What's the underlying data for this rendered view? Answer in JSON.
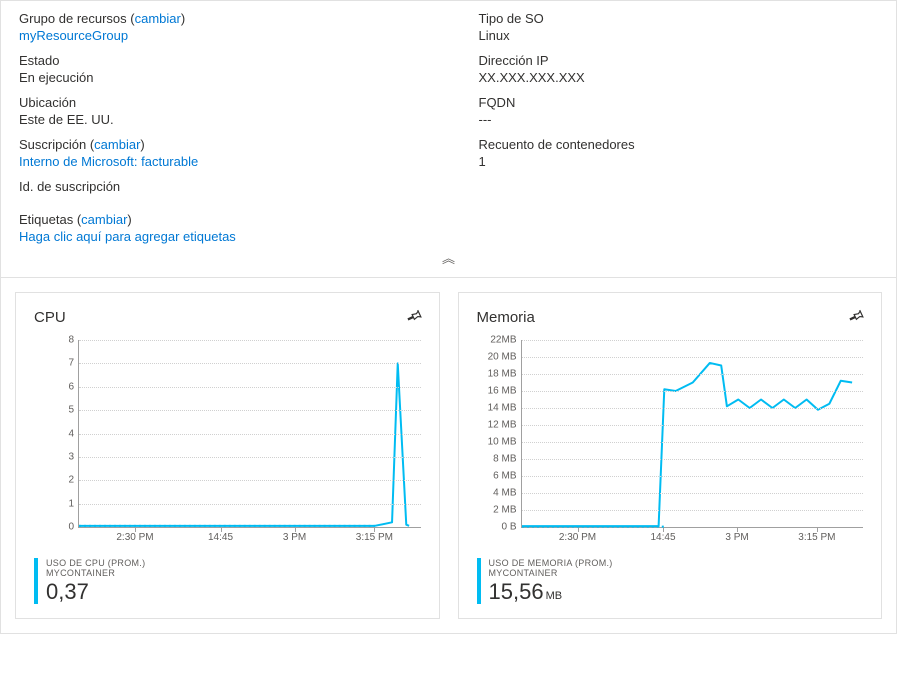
{
  "properties": {
    "left": [
      {
        "label": "Grupo de recursos",
        "change": "cambiar",
        "value": "myResourceGroup",
        "value_is_link": true
      },
      {
        "label": "Estado",
        "value": "En ejecución"
      },
      {
        "label": "Ubicación",
        "value": "Este de EE. UU."
      },
      {
        "label": "Suscripción",
        "change": "cambiar",
        "value": "Interno de Microsoft: facturable",
        "value_is_link": true
      },
      {
        "label": "Id. de suscripción",
        "value": ""
      }
    ],
    "right": [
      {
        "label": "Tipo de SO",
        "value": "Linux"
      },
      {
        "label": "Dirección IP",
        "value": "XX.XXX.XXX.XXX"
      },
      {
        "label": "FQDN",
        "value": "---"
      },
      {
        "label": "Recuento de contenedores",
        "value": "1"
      }
    ],
    "tags": {
      "label": "Etiquetas",
      "change": "cambiar",
      "empty_text": "Haga clic aquí para agregar etiquetas"
    }
  },
  "collapse_glyph": "︽",
  "charts": {
    "cpu": {
      "title": "CPU",
      "type": "line",
      "line_color": "#00bcf2",
      "line_width": 2,
      "background_color": "#ffffff",
      "grid_color": "#d0d0d0",
      "ylim": [
        0,
        8
      ],
      "yticks": [
        0,
        1,
        2,
        3,
        4,
        5,
        6,
        7,
        8
      ],
      "ytick_labels": [
        "0",
        "1",
        "2",
        "3",
        "4",
        "5",
        "6",
        "7",
        "8"
      ],
      "xlim": [
        0,
        60
      ],
      "xticks": [
        10,
        25,
        38,
        52
      ],
      "xtick_labels": [
        "2:30 PM",
        "14:45",
        "3 PM",
        "3:15 PM"
      ],
      "zero_dash_end": 52,
      "points": [
        [
          0,
          0.05
        ],
        [
          5,
          0.05
        ],
        [
          10,
          0.05
        ],
        [
          15,
          0.05
        ],
        [
          20,
          0.05
        ],
        [
          25,
          0.05
        ],
        [
          30,
          0.05
        ],
        [
          35,
          0.05
        ],
        [
          40,
          0.05
        ],
        [
          45,
          0.05
        ],
        [
          50,
          0.05
        ],
        [
          52,
          0.05
        ],
        [
          55,
          0.2
        ],
        [
          56,
          7.0
        ],
        [
          57.5,
          0.1
        ],
        [
          58,
          0.05
        ]
      ],
      "metric_name": "USO DE CPU (PROM.)",
      "metric_sub": "MYCONTAINER",
      "metric_value": "0,37",
      "metric_unit": ""
    },
    "memory": {
      "title": "Memoria",
      "type": "line",
      "line_color": "#00bcf2",
      "line_width": 2,
      "background_color": "#ffffff",
      "grid_color": "#d0d0d0",
      "ylim": [
        0,
        22
      ],
      "yticks": [
        0,
        2,
        4,
        6,
        8,
        10,
        12,
        14,
        16,
        18,
        20,
        22
      ],
      "ytick_labels": [
        "0 B",
        "2 MB",
        "4 MB",
        "6 MB",
        "8 MB",
        "10 MB",
        "12 MB",
        "14 MB",
        "16 MB",
        "18 MB",
        "20 MB",
        "22MB"
      ],
      "xlim": [
        0,
        60
      ],
      "xticks": [
        10,
        25,
        38,
        52
      ],
      "xtick_labels": [
        "2:30 PM",
        "14:45",
        "3 PM",
        "3:15 PM"
      ],
      "zero_dash_end": 25,
      "points": [
        [
          0,
          0.1
        ],
        [
          5,
          0.1
        ],
        [
          10,
          0.1
        ],
        [
          15,
          0.1
        ],
        [
          20,
          0.1
        ],
        [
          24,
          0.1
        ],
        [
          25,
          16.2
        ],
        [
          27,
          16.0
        ],
        [
          30,
          17.0
        ],
        [
          33,
          19.3
        ],
        [
          35,
          19.0
        ],
        [
          36,
          14.2
        ],
        [
          38,
          15.0
        ],
        [
          40,
          14.0
        ],
        [
          42,
          15.0
        ],
        [
          44,
          14.0
        ],
        [
          46,
          15.0
        ],
        [
          48,
          14.0
        ],
        [
          50,
          15.0
        ],
        [
          52,
          13.8
        ],
        [
          54,
          14.5
        ],
        [
          56,
          17.2
        ],
        [
          58,
          17.0
        ]
      ],
      "metric_name": "USO DE MEMORIA (PROM.)",
      "metric_sub": "MYCONTAINER",
      "metric_value": "15,56",
      "metric_unit": "MB"
    }
  }
}
